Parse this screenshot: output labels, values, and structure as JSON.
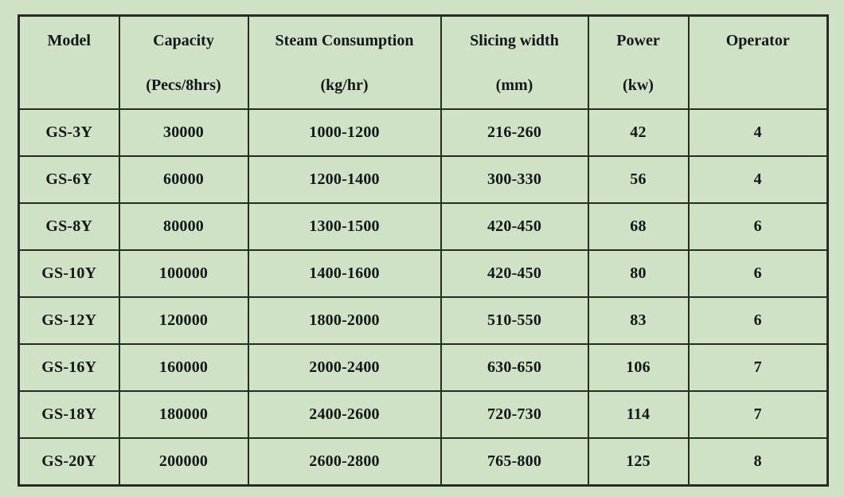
{
  "colors": {
    "background": "#cfe2c5",
    "border": "#272d23",
    "text": "#14171a"
  },
  "table": {
    "headers": [
      {
        "label": "Model",
        "unit": ""
      },
      {
        "label": "Capacity",
        "unit": "(Pecs/8hrs)"
      },
      {
        "label": "Steam Consumption",
        "unit": "(kg/hr)"
      },
      {
        "label": "Slicing width",
        "unit": "(mm)"
      },
      {
        "label": "Power",
        "unit": "(kw)"
      },
      {
        "label": "Operator",
        "unit": ""
      }
    ],
    "rows": [
      [
        "GS-3Y",
        "30000",
        "1000-1200",
        "216-260",
        "42",
        "4"
      ],
      [
        "GS-6Y",
        "60000",
        "1200-1400",
        "300-330",
        "56",
        "4"
      ],
      [
        "GS-8Y",
        "80000",
        "1300-1500",
        "420-450",
        "68",
        "6"
      ],
      [
        "GS-10Y",
        "100000",
        "1400-1600",
        "420-450",
        "80",
        "6"
      ],
      [
        "GS-12Y",
        "120000",
        "1800-2000",
        "510-550",
        "83",
        "6"
      ],
      [
        "GS-16Y",
        "160000",
        "2000-2400",
        "630-650",
        "106",
        "7"
      ],
      [
        "GS-18Y",
        "180000",
        "2400-2600",
        "720-730",
        "114",
        "7"
      ],
      [
        "GS-20Y",
        "200000",
        "2600-2800",
        "765-800",
        "125",
        "8"
      ]
    ]
  },
  "chart_data": {
    "type": "table",
    "columns": [
      "Model",
      "Capacity (Pecs/8hrs)",
      "Steam Consumption (kg/hr)",
      "Slicing width (mm)",
      "Power (kw)",
      "Operator"
    ],
    "rows": [
      [
        "GS-3Y",
        30000,
        "1000-1200",
        "216-260",
        42,
        4
      ],
      [
        "GS-6Y",
        60000,
        "1200-1400",
        "300-330",
        56,
        4
      ],
      [
        "GS-8Y",
        80000,
        "1300-1500",
        "420-450",
        68,
        6
      ],
      [
        "GS-10Y",
        100000,
        "1400-1600",
        "420-450",
        80,
        6
      ],
      [
        "GS-12Y",
        120000,
        "1800-2000",
        "510-550",
        83,
        6
      ],
      [
        "GS-16Y",
        160000,
        "2000-2400",
        "630-650",
        106,
        7
      ],
      [
        "GS-18Y",
        180000,
        "2400-2600",
        "720-730",
        114,
        7
      ],
      [
        "GS-20Y",
        200000,
        "2600-2800",
        "765-800",
        125,
        8
      ]
    ]
  }
}
